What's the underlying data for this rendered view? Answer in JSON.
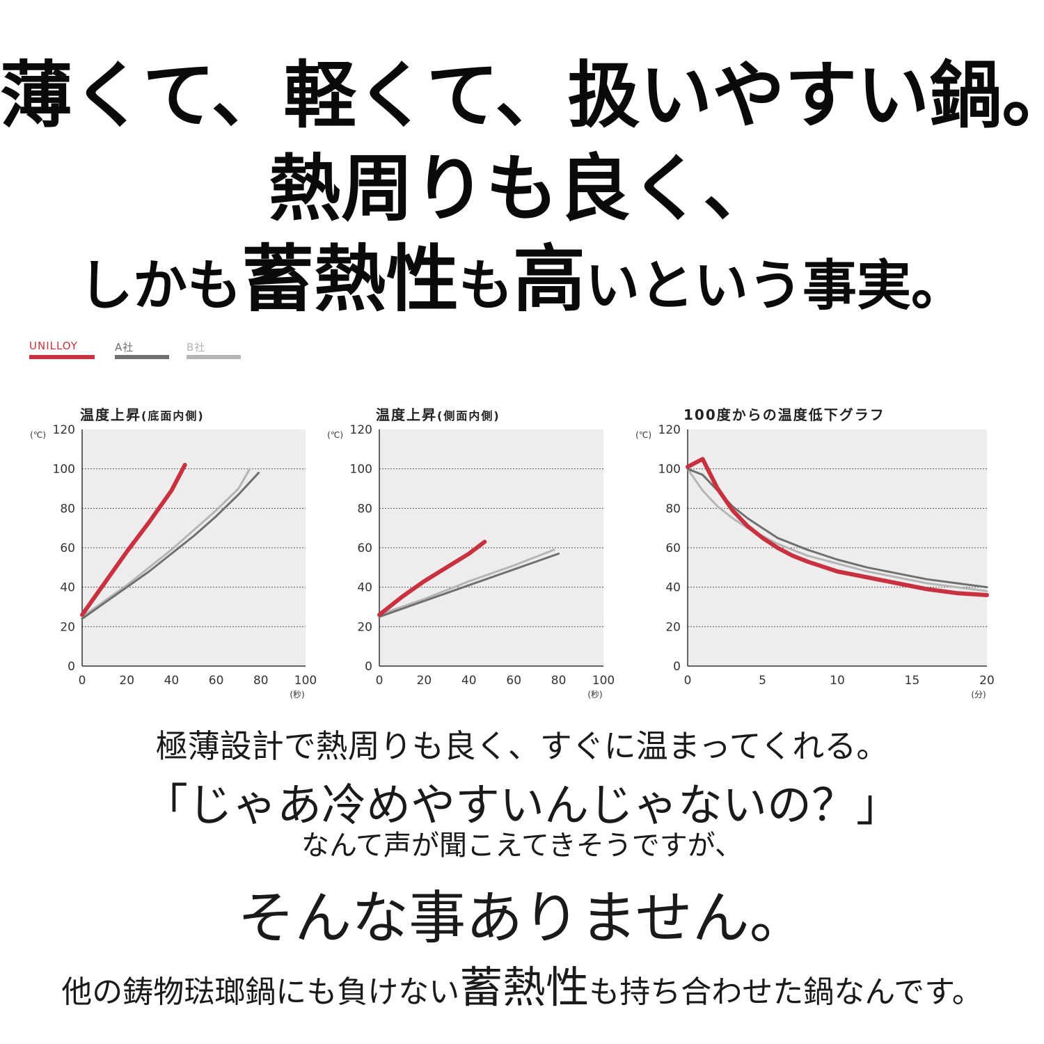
{
  "headline": {
    "line1": "薄くて、軽くて、扱いやすい鍋。",
    "line2": "熱周りも良く、",
    "line3": {
      "a": "しかも",
      "b": "蓄熱性",
      "c": "も",
      "d": "高",
      "e": "いという事実。"
    }
  },
  "legend": {
    "items": [
      {
        "label": "UNILLOY",
        "color": "#c8313f"
      },
      {
        "label": "A社",
        "color": "#6f6f6f"
      },
      {
        "label": "B社",
        "color": "#b5b5b5"
      }
    ]
  },
  "colors": {
    "plot_bg": "#eeecec",
    "grid": "#555555",
    "unilloy": "#c8313f",
    "a": "#6f6f6f",
    "b": "#b5b5b5"
  },
  "chart_data": [
    {
      "type": "line",
      "title": "温度上昇",
      "subtitle": "(底面内側)",
      "ylabel": "(℃)",
      "xlabel": "(秒)",
      "xlim": [
        0,
        100
      ],
      "ylim": [
        0,
        120
      ],
      "xticks": [
        "0",
        "20",
        "40",
        "60",
        "80",
        "100"
      ],
      "yticks": [
        "0",
        "20",
        "40",
        "60",
        "80",
        "100",
        "120"
      ],
      "grid": true,
      "series": [
        {
          "name": "UNILLOY",
          "x": [
            0,
            10,
            20,
            30,
            40,
            46
          ],
          "y": [
            26,
            42,
            58,
            73,
            89,
            102
          ]
        },
        {
          "name": "A社",
          "x": [
            0,
            10,
            20,
            30,
            40,
            50,
            60,
            70,
            79
          ],
          "y": [
            24,
            32,
            40,
            48,
            57,
            66,
            76,
            87,
            98
          ]
        },
        {
          "name": "B社",
          "x": [
            0,
            10,
            20,
            30,
            40,
            50,
            60,
            70,
            75
          ],
          "y": [
            25,
            33,
            41,
            50,
            59,
            69,
            79,
            90,
            100
          ]
        }
      ]
    },
    {
      "type": "line",
      "title": "温度上昇",
      "subtitle": "(側面内側)",
      "ylabel": "(℃)",
      "xlabel": "(秒)",
      "xlim": [
        0,
        100
      ],
      "ylim": [
        0,
        120
      ],
      "xticks": [
        "0",
        "20",
        "40",
        "60",
        "80",
        "100"
      ],
      "yticks": [
        "0",
        "20",
        "40",
        "60",
        "80",
        "100",
        "120"
      ],
      "grid": true,
      "series": [
        {
          "name": "UNILLOY",
          "x": [
            0,
            10,
            20,
            30,
            40,
            47
          ],
          "y": [
            26,
            35,
            43,
            50,
            57,
            63
          ]
        },
        {
          "name": "A社",
          "x": [
            0,
            20,
            40,
            60,
            80
          ],
          "y": [
            25,
            33,
            41,
            49,
            57
          ]
        },
        {
          "name": "B社",
          "x": [
            0,
            20,
            40,
            60,
            78
          ],
          "y": [
            26,
            34,
            43,
            51,
            59
          ]
        }
      ]
    },
    {
      "type": "line",
      "title": "100度からの温度低下グラフ",
      "subtitle": "",
      "ylabel": "(℃)",
      "xlabel": "(分)",
      "xlim": [
        0,
        20
      ],
      "ylim": [
        0,
        120
      ],
      "xticks": [
        "0",
        "5",
        "10",
        "15",
        "20"
      ],
      "yticks": [
        "0",
        "20",
        "40",
        "60",
        "80",
        "100",
        "120"
      ],
      "grid": true,
      "series": [
        {
          "name": "UNILLOY",
          "x": [
            0,
            1,
            2,
            3,
            4,
            5,
            6,
            7,
            8,
            10,
            12,
            14,
            16,
            18,
            20
          ],
          "y": [
            101,
            105,
            90,
            79,
            71,
            65,
            60,
            56,
            53,
            48,
            45,
            42,
            39,
            37,
            36
          ]
        },
        {
          "name": "A社",
          "x": [
            0,
            1,
            2,
            3,
            4,
            5,
            6,
            7,
            8,
            10,
            12,
            14,
            16,
            18,
            20
          ],
          "y": [
            100,
            97,
            89,
            81,
            75,
            70,
            65,
            62,
            59,
            54,
            50,
            47,
            44,
            42,
            40
          ]
        },
        {
          "name": "B社",
          "x": [
            0,
            1,
            2,
            3,
            4,
            5,
            6,
            7,
            8,
            10,
            12,
            14,
            16,
            18,
            20
          ],
          "y": [
            100,
            89,
            81,
            75,
            70,
            66,
            62,
            59,
            56,
            52,
            48,
            45,
            42,
            40,
            38
          ]
        }
      ]
    }
  ],
  "body": {
    "p1": "極薄設計で熱周りも良く、すぐに温まってくれる。",
    "p2": "「じゃあ冷めやすいんじゃないの？」",
    "p3": "なんて声が聞こえてきそうですが、",
    "p4": "そんな事ありません。",
    "p5": {
      "a": "他の鋳物琺瑯鍋にも負けない",
      "b": "蓄熱性",
      "c": "も持ち合わせた鍋なんです。"
    }
  }
}
